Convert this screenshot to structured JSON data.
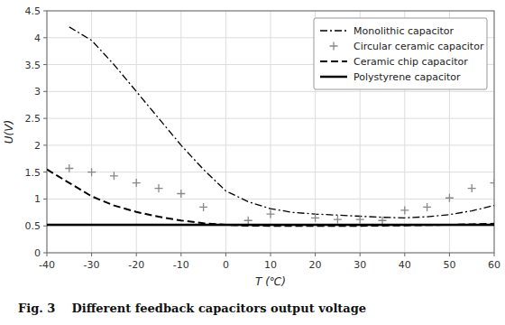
{
  "chart_data": {
    "type": "line",
    "xlabel": "T (℃)",
    "ylabel": "U(V)",
    "caption": "Fig. 3    Different feedback capacitors output voltage",
    "xlim": [
      -40,
      60
    ],
    "ylim": [
      0,
      4.5
    ],
    "xticks": [
      -40,
      -30,
      -20,
      -10,
      0,
      10,
      20,
      30,
      40,
      50,
      60
    ],
    "yticks": [
      0,
      0.5,
      1,
      1.5,
      2,
      2.5,
      3,
      3.5,
      4,
      4.5
    ],
    "grid": true,
    "legend": "upper-right",
    "series": [
      {
        "name": "Monolithic capacitor",
        "type": "line",
        "line_style": "dashdot",
        "color": "#000000",
        "x": [
          -35,
          -30,
          -25,
          -20,
          -15,
          -10,
          -5,
          0,
          5,
          10,
          15,
          20,
          25,
          30,
          35,
          40,
          45,
          50,
          55,
          60
        ],
        "values": [
          4.2,
          3.95,
          3.5,
          3.0,
          2.5,
          2.0,
          1.55,
          1.15,
          0.95,
          0.82,
          0.75,
          0.72,
          0.7,
          0.68,
          0.66,
          0.65,
          0.67,
          0.71,
          0.78,
          0.88
        ]
      },
      {
        "name": "Circular ceramic capacitor",
        "type": "scatter",
        "marker": "plus",
        "color": "#888888",
        "x": [
          -35,
          -30,
          -25,
          -20,
          -15,
          -10,
          -5,
          5,
          10,
          20,
          25,
          30,
          35,
          40,
          45,
          50,
          55,
          60
        ],
        "values": [
          1.57,
          1.5,
          1.43,
          1.3,
          1.2,
          1.1,
          0.85,
          0.6,
          0.72,
          0.65,
          0.62,
          0.62,
          0.6,
          0.79,
          0.85,
          1.02,
          1.2,
          1.3
        ]
      },
      {
        "name": "Ceramic chip capacitor",
        "type": "line",
        "line_style": "dashed",
        "color": "#000000",
        "x": [
          -40,
          -35,
          -30,
          -25,
          -20,
          -15,
          -10,
          -5,
          0,
          5,
          10,
          15,
          20,
          25,
          30,
          35,
          40,
          45,
          50,
          55,
          60
        ],
        "values": [
          1.55,
          1.3,
          1.05,
          0.88,
          0.76,
          0.67,
          0.6,
          0.55,
          0.52,
          0.505,
          0.5,
          0.5,
          0.5,
          0.5,
          0.5,
          0.505,
          0.51,
          0.515,
          0.52,
          0.53,
          0.54
        ]
      },
      {
        "name": "Polystyrene capacitor",
        "type": "line",
        "line_style": "solid",
        "color": "#000000",
        "x": [
          -40,
          60
        ],
        "values": [
          0.52,
          0.52
        ]
      }
    ]
  }
}
